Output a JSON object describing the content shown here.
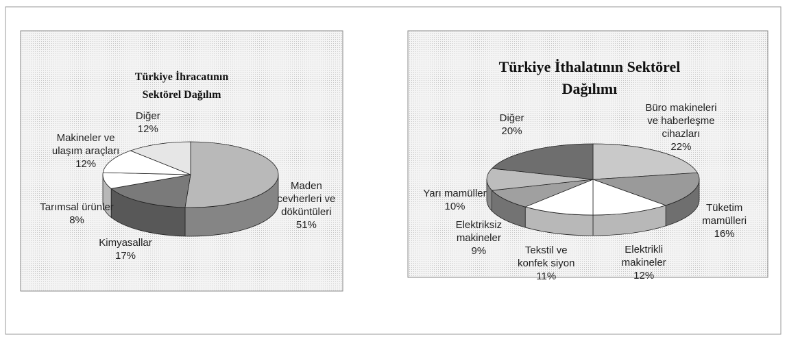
{
  "chart_data": [
    {
      "type": "pie3d",
      "title": "Türkiye İhracatının Sektörel Dağılım",
      "categories": [
        "Maden cevherleri ve döküntüleri",
        "Kimyasallar",
        "Tarımsal ürünler",
        "Makineler ve ulaşım araçları",
        "Diğer"
      ],
      "values": [
        51,
        17,
        8,
        12,
        12
      ],
      "value_labels": [
        "51%",
        "17%",
        "8%",
        "12%",
        "12%"
      ],
      "colors": [
        "#b9b9b9",
        "#7a7a7a",
        "#ffffff",
        "#ffffff",
        "#e6e6e6"
      ]
    },
    {
      "type": "pie3d",
      "title": "Türkiye İthalatının Sektörel Dağılımı",
      "categories": [
        "Büro makineleri ve haberleşme cihazları",
        "Tüketim mamülleri",
        "Elektrikli makineler",
        "Tekstil ve konfek siyon",
        "Elektriksiz makineler",
        "Yarı mamüller",
        "Diğer"
      ],
      "values": [
        22,
        16,
        12,
        11,
        9,
        10,
        20
      ],
      "value_labels": [
        "22%",
        "16%",
        "12%",
        "11%",
        "9%",
        "10%",
        "20%"
      ],
      "colors": [
        "#c9c9c9",
        "#9a9a9a",
        "#ffffff",
        "#ffffff",
        "#a0a0a0",
        "#bdbdbd",
        "#6e6e6e"
      ]
    }
  ]
}
